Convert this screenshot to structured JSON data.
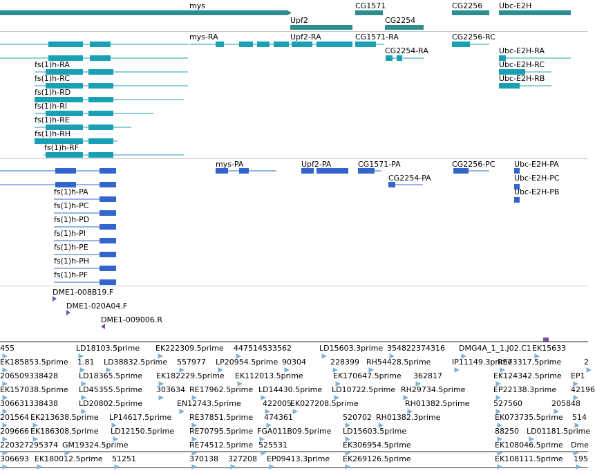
{
  "colors": {
    "gene": "#2e8e8e",
    "transcript": "#1aa0b4",
    "protein": "#3366cc",
    "clone": "#7a4fb0",
    "est": "#7bb3d6",
    "divider": "#c8c8c8"
  },
  "genes": [
    "mys",
    "Upf2",
    "CG1571",
    "CG2254",
    "CG2256",
    "Ubc-E2H"
  ],
  "transcripts": [
    "mys-RA",
    "Upf2-RA",
    "CG1571-RA",
    "CG2254-RA",
    "CG2256-RC",
    "Ubc-E2H-RA",
    "Ubc-E2H-RC",
    "Ubc-E2H-RB",
    "fs(1)h-RA",
    "fs(1)h-RC",
    "fs(1)h-RD",
    "fs(1)h-RI",
    "fs(1)h-RE",
    "fs(1)h-RH",
    "fs(1)h-RF"
  ],
  "proteins": [
    "mys-PA",
    "Upf2-PA",
    "CG1571-PA",
    "CG2254-PA",
    "CG2256-PC",
    "Ubc-E2H-PA",
    "Ubc-E2H-PC",
    "Ubc-E2H-PB",
    "fs(1)h-PA",
    "fs(1)h-PC",
    "fs(1)h-PD",
    "fs(1)h-PI",
    "fs(1)h-PE",
    "fs(1)h-PH",
    "fs(1)h-PF"
  ],
  "clones": [
    "DME1-008B19.F",
    "DME1-020A04.F",
    "DME1-009006.R"
  ],
  "ests": [
    [
      "455",
      "LD18103.5prime",
      "EK222309.5prime",
      "447514533562",
      "LD15603.3prime",
      "354822374316",
      "DMG4A_1_1.J02.C1",
      "EK15633"
    ],
    [
      "EK185853.5prime",
      "1.81",
      "LD38832.5prime",
      "557977",
      "LP20954.5prime",
      "90304",
      "228399",
      "RH54428.5prime",
      "IP11149.3prime",
      "RE73317.5prime",
      "2"
    ],
    [
      "206509338428",
      "LD18365.5prime",
      "EK182229.5prime",
      "EK112013.5prime",
      "EK170647.5prime",
      "362817",
      "EK124342.5prime",
      "EP1"
    ],
    [
      "EK157038.5prime",
      "LD45355.5prime",
      "303634",
      "RE17962.5prime",
      "LD14430.5prime",
      "LD10722.5prime",
      "RH29734.5prime",
      "EP22138.3prime",
      "42196"
    ],
    [
      "306631338438",
      "LD20802.5prime",
      "EN12743.5prime",
      "422005",
      "EK027208.5prime",
      "RH01382.5prime",
      "527560",
      "205848"
    ],
    [
      "201564",
      "EK213638.5prime",
      "LP14617.5prime",
      "RE37851.5prime",
      "474361",
      "520702",
      "RH01382.3prime",
      "EK073735.5prime",
      "514"
    ],
    [
      "209666",
      "EK186308.5prime",
      "LD12150.5prime",
      "RE70795.5prime",
      "FGA011B09.5prime",
      "LD15603.5prime",
      "88250",
      "LD01181.5prime"
    ],
    [
      "220327295374",
      "GM19324.5prime",
      "RE74512.5prime",
      "525531",
      "EK306954.5prime",
      "EK108046.5prime",
      "Dme"
    ],
    [
      "306693",
      "EK180012.5prime",
      "51251",
      "370138",
      "327208",
      "EP09413.3prime",
      "EK269126.5prime",
      "EK108111.5prime",
      "195"
    ]
  ]
}
